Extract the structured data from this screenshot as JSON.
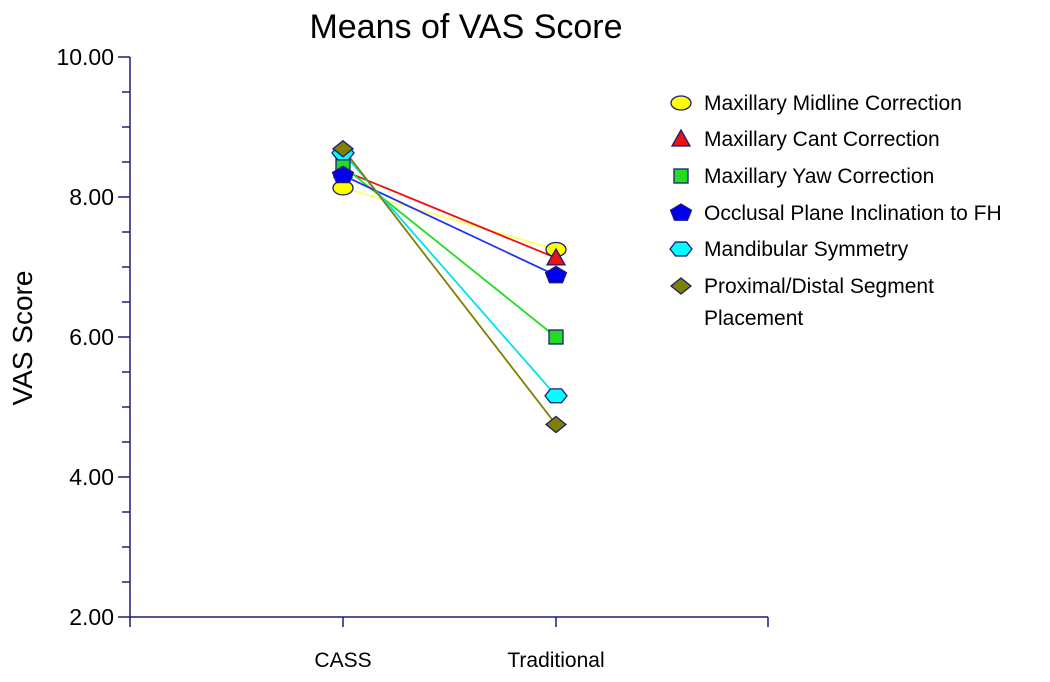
{
  "chart_data": {
    "type": "line",
    "title": "Means of VAS Score",
    "xlabel": "",
    "ylabel": "VAS  Score",
    "categories": [
      "CASS",
      "Traditional"
    ],
    "ylim": [
      2.0,
      10.0
    ],
    "yticks": [
      "2.00",
      "4.00",
      "6.00",
      "8.00",
      "10.00"
    ],
    "grid": false,
    "legend_position": "right",
    "series": [
      {
        "name": "Maxillary Midline Correction",
        "values": [
          8.13,
          7.25
        ],
        "color": "#ffff00",
        "line_color": "#ffff66",
        "marker": "ellipse"
      },
      {
        "name": "Maxillary Cant Correction",
        "values": [
          8.38,
          7.13
        ],
        "color": "#ee1111",
        "line_color": "#ee1111",
        "marker": "triangle"
      },
      {
        "name": "Maxillary Yaw Correction",
        "values": [
          8.44,
          6.0
        ],
        "color": "#22dd22",
        "line_color": "#22dd22",
        "marker": "square"
      },
      {
        "name": "Occlusal Plane Inclination to FH",
        "values": [
          8.31,
          6.88
        ],
        "color": "#0000ee",
        "line_color": "#2233ee",
        "marker": "pentagon"
      },
      {
        "name": "Mandibular Symmetry",
        "values": [
          8.63,
          5.16
        ],
        "color": "#00ffff",
        "line_color": "#00e0ee",
        "marker": "hexagon"
      },
      {
        "name": "Proximal/Distal Segment Placement",
        "values": [
          8.69,
          4.75
        ],
        "color": "#808000",
        "line_color": "#808000",
        "marker": "diamond"
      }
    ]
  }
}
